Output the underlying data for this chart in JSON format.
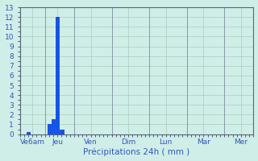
{
  "bar_positions": [
    1.0,
    3.5,
    4.0,
    4.5,
    5.0
  ],
  "bar_heights": [
    0.25,
    1.0,
    1.5,
    12.0,
    0.5
  ],
  "bar_width": 0.4,
  "bar_color": "#1155EE",
  "bar_edge_color": "#0033CC",
  "ylim": [
    0,
    13
  ],
  "xlim": [
    0,
    28
  ],
  "yticks": [
    0,
    1,
    2,
    3,
    4,
    5,
    6,
    7,
    8,
    9,
    10,
    11,
    12,
    13
  ],
  "xtick_positions": [
    1.5,
    4.5,
    8.5,
    13.0,
    17.5,
    22.0,
    26.5
  ],
  "xtick_labels": [
    "Ve6am",
    "Jeu",
    "Ven",
    "Dim",
    "Lun",
    "Mar",
    "Mer"
  ],
  "separator_positions": [
    3.0,
    6.5,
    11.0,
    15.5,
    20.0,
    24.5
  ],
  "xlabel": "Précipitations 24h ( mm )",
  "xlabel_fontsize": 7.5,
  "tick_fontsize": 6.5,
  "bg_color": "#D0EEE8",
  "grid_color": "#AACCBB",
  "sep_color": "#8899AA",
  "tick_color": "#3355BB",
  "spine_color": "#556677"
}
